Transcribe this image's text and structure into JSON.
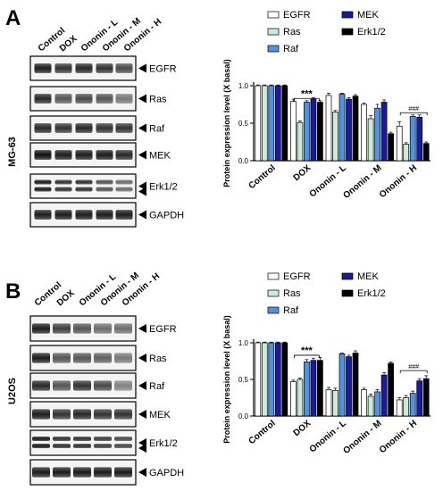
{
  "panels": [
    {
      "letter": "A",
      "cell_line": "MG-63",
      "conditions": [
        "Control",
        "DOX",
        "Ononin - L",
        "Ononin - M",
        "Ononin - H"
      ],
      "blot_labels": [
        "EGFR",
        "Ras",
        "Raf",
        "MEK",
        "Erk1/2",
        "GAPDH"
      ],
      "significance": [
        "***",
        "###"
      ]
    },
    {
      "letter": "B",
      "cell_line": "U2OS",
      "conditions": [
        "Control",
        "DOX",
        "Ononin - L",
        "Ononin - M",
        "Ononin - H"
      ],
      "blot_labels": [
        "EGFR",
        "Ras",
        "Raf",
        "MEK",
        "Erk1/2",
        "GAPDH"
      ],
      "significance": [
        "***",
        "###"
      ]
    }
  ],
  "colors": {
    "EGFR": "#ffffff",
    "Ras": "#c8ecd9",
    "Raf": "#4f94e3",
    "MEK": "#1a1aa6",
    "Erk1/2": "#000000"
  },
  "chart_data": [
    {
      "type": "bar",
      "ylabel": "Protein expression level (X basal)",
      "ylim": [
        0,
        1.0
      ],
      "yticks": [
        "0.0",
        "0.5",
        "1.0"
      ],
      "categories": [
        "Control",
        "DOX",
        "Ononin - L",
        "Ononin - M",
        "Ononin - H"
      ],
      "series": [
        {
          "name": "EGFR",
          "values": [
            1.0,
            0.79,
            0.87,
            0.75,
            0.46
          ],
          "errors": [
            0.01,
            0.03,
            0.03,
            0.02,
            0.06
          ]
        },
        {
          "name": "Ras",
          "values": [
            1.0,
            0.51,
            0.65,
            0.56,
            0.22
          ],
          "errors": [
            0.01,
            0.02,
            0.02,
            0.04,
            0.02
          ]
        },
        {
          "name": "Raf",
          "values": [
            1.0,
            0.78,
            0.89,
            0.7,
            0.59
          ],
          "errors": [
            0.01,
            0.02,
            0.01,
            0.05,
            0.02
          ]
        },
        {
          "name": "MEK",
          "values": [
            1.0,
            0.82,
            0.82,
            0.78,
            0.58
          ],
          "errors": [
            0.01,
            0.02,
            0.02,
            0.03,
            0.03
          ]
        },
        {
          "name": "Erk1/2",
          "values": [
            1.0,
            0.78,
            0.86,
            0.36,
            0.23
          ],
          "errors": [
            0.01,
            0.02,
            0.02,
            0.02,
            0.02
          ]
        }
      ],
      "annotations": [
        {
          "text": "***",
          "from": "Control",
          "to": "DOX"
        },
        {
          "text": "###",
          "from": "Ononin - H",
          "to": "Ononin - H"
        }
      ]
    },
    {
      "type": "bar",
      "ylabel": "Protein expression level (X basal)",
      "ylim": [
        0,
        1.0
      ],
      "yticks": [
        "0.0",
        "0.5",
        "1.0"
      ],
      "categories": [
        "Control",
        "DOX",
        "Ononin - L",
        "Ononin - M",
        "Ononin - H"
      ],
      "series": [
        {
          "name": "EGFR",
          "values": [
            1.0,
            0.47,
            0.36,
            0.36,
            0.22
          ],
          "errors": [
            0.01,
            0.02,
            0.03,
            0.02,
            0.03
          ]
        },
        {
          "name": "Ras",
          "values": [
            1.0,
            0.5,
            0.35,
            0.27,
            0.25
          ],
          "errors": [
            0.01,
            0.02,
            0.03,
            0.03,
            0.03
          ]
        },
        {
          "name": "Raf",
          "values": [
            1.0,
            0.74,
            0.85,
            0.33,
            0.31
          ],
          "errors": [
            0.01,
            0.03,
            0.01,
            0.03,
            0.03
          ]
        },
        {
          "name": "MEK",
          "values": [
            1.0,
            0.76,
            0.81,
            0.56,
            0.48
          ],
          "errors": [
            0.01,
            0.03,
            0.02,
            0.03,
            0.03
          ]
        },
        {
          "name": "Erk1/2",
          "values": [
            1.0,
            0.76,
            0.86,
            0.72,
            0.51
          ],
          "errors": [
            0.01,
            0.04,
            0.03,
            0.02,
            0.04
          ]
        }
      ],
      "annotations": [
        {
          "text": "***",
          "from": "Control",
          "to": "DOX"
        },
        {
          "text": "###",
          "from": "Ononin - H",
          "to": "Ononin - H"
        }
      ]
    }
  ]
}
